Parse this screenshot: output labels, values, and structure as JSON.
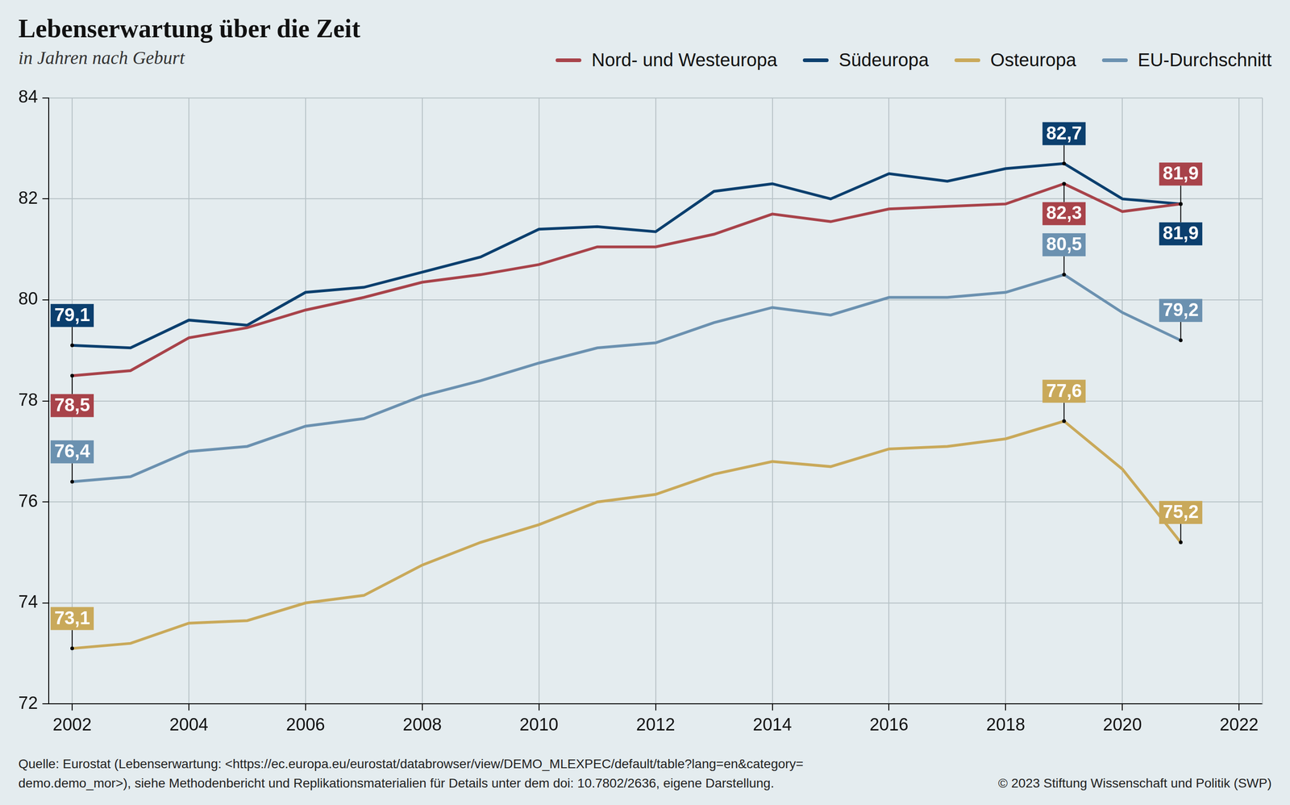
{
  "chart_data": {
    "type": "line",
    "title": "Lebenserwartung über die Zeit",
    "subtitle": "in Jahren nach Geburt",
    "source": [
      "Quelle: Eurostat (Lebenserwartung: <https://ec.europa.eu/eurostat/databrowser/view/DEMO_MLEXPEC/default/table?lang=en&category=",
      "demo.demo_mor>), siehe Methodenbericht und Replikationsmaterialien für Details unter dem doi: 10.7802/2636, eigene Darstellung."
    ],
    "credit": "© 2023 Stiftung Wissenschaft und Politik (SWP)",
    "x": [
      2002,
      2003,
      2004,
      2005,
      2006,
      2007,
      2008,
      2009,
      2010,
      2011,
      2012,
      2013,
      2014,
      2015,
      2016,
      2017,
      2018,
      2019,
      2020,
      2021
    ],
    "series": [
      {
        "name": "Nord- und Westeuropa",
        "color": "#a8434a",
        "values": [
          78.5,
          78.6,
          79.25,
          79.45,
          79.8,
          80.05,
          80.35,
          80.5,
          80.7,
          81.05,
          81.05,
          81.3,
          81.7,
          81.55,
          81.8,
          81.85,
          81.9,
          82.3,
          81.75,
          81.9
        ],
        "value_labels": [
          "78,5",
          null,
          null,
          null,
          null,
          null,
          null,
          null,
          null,
          null,
          null,
          null,
          null,
          null,
          null,
          null,
          null,
          "82,3",
          null,
          "81,9"
        ]
      },
      {
        "name": "Südeuropa",
        "color": "#0b3f6e",
        "values": [
          79.1,
          79.05,
          79.6,
          79.5,
          80.15,
          80.25,
          80.55,
          80.85,
          81.4,
          81.45,
          81.35,
          82.15,
          82.3,
          82.0,
          82.5,
          82.35,
          82.6,
          82.7,
          82.0,
          81.9
        ],
        "value_labels": [
          "79,1",
          null,
          null,
          null,
          null,
          null,
          null,
          null,
          null,
          null,
          null,
          null,
          null,
          null,
          null,
          null,
          null,
          "82,7",
          null,
          "81,9"
        ]
      },
      {
        "name": "Osteuropa",
        "color": "#c9a95a",
        "values": [
          73.1,
          73.2,
          73.6,
          73.65,
          74.0,
          74.15,
          74.75,
          75.2,
          75.55,
          76.0,
          76.15,
          76.55,
          76.8,
          76.7,
          77.05,
          77.1,
          77.25,
          77.6,
          76.65,
          75.2
        ],
        "value_labels": [
          "73,1",
          null,
          null,
          null,
          null,
          null,
          null,
          null,
          null,
          null,
          null,
          null,
          null,
          null,
          null,
          null,
          null,
          "77,6",
          null,
          "75,2"
        ]
      },
      {
        "name": "EU-Durchschnitt",
        "color": "#6b91b0",
        "values": [
          76.4,
          76.5,
          77.0,
          77.1,
          77.5,
          77.65,
          78.1,
          78.4,
          78.75,
          79.05,
          79.15,
          79.55,
          79.85,
          79.7,
          80.05,
          80.05,
          80.15,
          80.5,
          79.75,
          79.2
        ],
        "value_labels": [
          "76,4",
          null,
          null,
          null,
          null,
          null,
          null,
          null,
          null,
          null,
          null,
          null,
          null,
          null,
          null,
          null,
          null,
          "80,5",
          null,
          "79,2"
        ]
      }
    ],
    "xlim": [
      2001.6,
      2022.4
    ],
    "xticks": [
      2002,
      2004,
      2006,
      2008,
      2010,
      2012,
      2014,
      2016,
      2018,
      2020,
      2022
    ],
    "ylim": [
      72,
      84
    ],
    "yticks": [
      72,
      74,
      76,
      78,
      80,
      82,
      84
    ],
    "grid": true,
    "legend": "top right",
    "data_labels": true
  }
}
